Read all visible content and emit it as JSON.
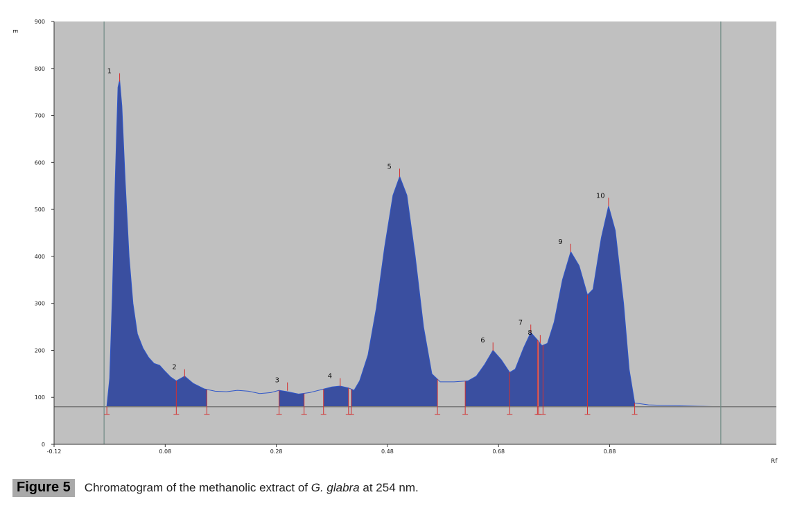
{
  "chart_data": {
    "type": "area",
    "y_axis_label": "E",
    "x_axis_label": "Rf",
    "y_range": [
      0,
      900
    ],
    "x_range": [
      -0.12,
      1.18
    ],
    "y_ticks": [
      "0",
      "100",
      "200",
      "300",
      "400",
      "500",
      "600",
      "700",
      "800",
      "900"
    ],
    "x_tick_labels": [
      {
        "value": -0.12,
        "label": "-0.12"
      },
      {
        "value": 0.08,
        "label": "0.08"
      },
      {
        "value": 0.28,
        "label": "0.28"
      },
      {
        "value": 0.48,
        "label": "0.48"
      },
      {
        "value": 0.68,
        "label": "0.68"
      },
      {
        "value": 0.88,
        "label": "0.88"
      }
    ],
    "baseline": 80,
    "start_line_rf": -0.03,
    "front_line_rf": 1.08,
    "trace": [
      [
        -0.025,
        80
      ],
      [
        -0.02,
        140
      ],
      [
        -0.015,
        320
      ],
      [
        -0.01,
        560
      ],
      [
        -0.005,
        760
      ],
      [
        -0.002,
        775
      ],
      [
        0.002,
        720
      ],
      [
        0.008,
        560
      ],
      [
        0.015,
        400
      ],
      [
        0.022,
        300
      ],
      [
        0.03,
        235
      ],
      [
        0.04,
        205
      ],
      [
        0.05,
        185
      ],
      [
        0.06,
        172
      ],
      [
        0.07,
        168
      ],
      [
        0.08,
        155
      ],
      [
        0.09,
        143
      ],
      [
        0.1,
        135
      ],
      [
        0.115,
        145
      ],
      [
        0.13,
        130
      ],
      [
        0.15,
        118
      ],
      [
        0.17,
        113
      ],
      [
        0.19,
        112
      ],
      [
        0.21,
        115
      ],
      [
        0.23,
        113
      ],
      [
        0.25,
        108
      ],
      [
        0.27,
        110
      ],
      [
        0.285,
        115
      ],
      [
        0.3,
        112
      ],
      [
        0.32,
        107
      ],
      [
        0.34,
        110
      ],
      [
        0.36,
        116
      ],
      [
        0.38,
        122
      ],
      [
        0.395,
        124
      ],
      [
        0.41,
        120
      ],
      [
        0.42,
        115
      ],
      [
        0.43,
        135
      ],
      [
        0.445,
        190
      ],
      [
        0.46,
        290
      ],
      [
        0.475,
        420
      ],
      [
        0.49,
        530
      ],
      [
        0.502,
        570
      ],
      [
        0.515,
        530
      ],
      [
        0.53,
        400
      ],
      [
        0.545,
        250
      ],
      [
        0.56,
        150
      ],
      [
        0.575,
        133
      ],
      [
        0.6,
        133
      ],
      [
        0.625,
        135
      ],
      [
        0.64,
        145
      ],
      [
        0.655,
        170
      ],
      [
        0.67,
        200
      ],
      [
        0.685,
        180
      ],
      [
        0.7,
        153
      ],
      [
        0.71,
        160
      ],
      [
        0.725,
        205
      ],
      [
        0.738,
        238
      ],
      [
        0.75,
        222
      ],
      [
        0.758,
        210
      ],
      [
        0.768,
        215
      ],
      [
        0.78,
        260
      ],
      [
        0.795,
        350
      ],
      [
        0.81,
        410
      ],
      [
        0.825,
        380
      ],
      [
        0.84,
        318
      ],
      [
        0.85,
        330
      ],
      [
        0.865,
        440
      ],
      [
        0.878,
        507
      ],
      [
        0.89,
        455
      ],
      [
        0.905,
        300
      ],
      [
        0.915,
        160
      ],
      [
        0.925,
        88
      ],
      [
        0.95,
        84
      ],
      [
        1.0,
        82
      ],
      [
        1.04,
        81
      ],
      [
        1.08,
        80
      ]
    ],
    "peaks": [
      {
        "label": "1",
        "rf": -0.002,
        "height": 775
      },
      {
        "label": "2",
        "rf": 0.115,
        "height": 145
      },
      {
        "label": "3",
        "rf": 0.3,
        "height": 117
      },
      {
        "label": "4",
        "rf": 0.395,
        "height": 126
      },
      {
        "label": "5",
        "rf": 0.502,
        "height": 572
      },
      {
        "label": "6",
        "rf": 0.67,
        "height": 202
      },
      {
        "label": "7",
        "rf": 0.738,
        "height": 240
      },
      {
        "label": "8",
        "rf": 0.755,
        "height": 218
      },
      {
        "label": "9",
        "rf": 0.81,
        "height": 412
      },
      {
        "label": "10",
        "rf": 0.878,
        "height": 510
      }
    ],
    "integration_regions": [
      [
        -0.025,
        0.1
      ],
      [
        0.1,
        0.155
      ],
      [
        0.285,
        0.33
      ],
      [
        0.365,
        0.41
      ],
      [
        0.415,
        0.57
      ],
      [
        0.62,
        0.7
      ],
      [
        0.7,
        0.75
      ],
      [
        0.752,
        0.76
      ],
      [
        0.76,
        0.84
      ],
      [
        0.84,
        0.925
      ]
    ],
    "colors": {
      "fill": "#3a4fa0",
      "trace": "#2f56c8",
      "plot_bg": "#c0c0c0",
      "integration_marks": "#d43030",
      "baseline": "#7a7a7a"
    }
  },
  "caption": {
    "badge": "Figure 5",
    "text_before": "Chromatogram of the methanolic extract of ",
    "species": "G. glabra",
    "text_after": " at 254 nm."
  }
}
